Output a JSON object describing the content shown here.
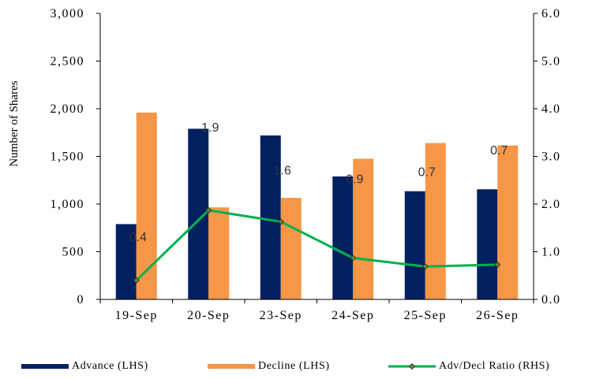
{
  "chart_data": {
    "type": "bar",
    "categories": [
      "19-Sep",
      "20-Sep",
      "23-Sep",
      "24-Sep",
      "25-Sep",
      "26-Sep"
    ],
    "series": [
      {
        "name": "Advance (LHS)",
        "axis": "left",
        "type": "bar",
        "color": "#002060",
        "values": [
          790,
          1790,
          1720,
          1290,
          1135,
          1155
        ]
      },
      {
        "name": "Decline (LHS)",
        "axis": "left",
        "type": "bar",
        "color": "#F79646",
        "values": [
          1960,
          965,
          1065,
          1475,
          1640,
          1615
        ]
      },
      {
        "name": "Adv/Decl Ratio (RHS)",
        "axis": "right",
        "type": "line",
        "color": "#00B050",
        "values": [
          0.4,
          1.87,
          1.63,
          0.87,
          0.69,
          0.73
        ],
        "data_labels": [
          "0.4",
          "1.9",
          "1.6",
          "0.9",
          "0.7",
          "0.7"
        ]
      }
    ],
    "ylabel": "Number of Shares",
    "ylim_left": [
      0,
      3000
    ],
    "yticks_left": [
      "0",
      "500",
      "1,000",
      "1,500",
      "2,000",
      "2,500",
      "3,000"
    ],
    "ylim_right": [
      0,
      6
    ],
    "yticks_right": [
      "0.0",
      "1.0",
      "2.0",
      "3.0",
      "4.0",
      "5.0",
      "6.0"
    ],
    "grid": false,
    "legend": "bottom"
  }
}
